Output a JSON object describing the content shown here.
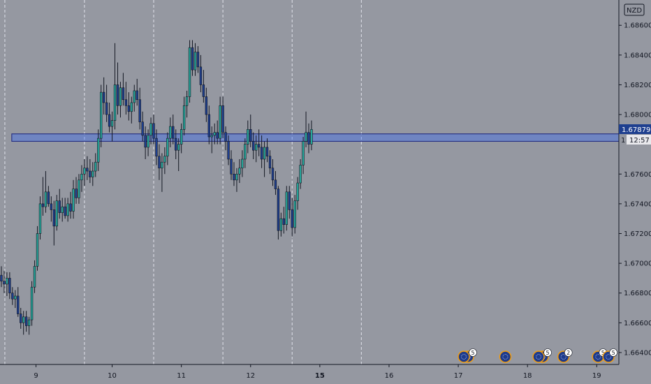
{
  "chart_data": {
    "type": "candlestick",
    "currency": "NZD",
    "y_ticks": [
      "1.68600",
      "1.68400",
      "1.68200",
      "1.68000",
      "1.67600",
      "1.67400",
      "1.67200",
      "1.67000",
      "1.66800",
      "1.66600",
      "1.66400"
    ],
    "y_tick_values": [
      1.686,
      1.684,
      1.682,
      1.68,
      1.676,
      1.674,
      1.672,
      1.67,
      1.668,
      1.666,
      1.664
    ],
    "ylim": [
      1.6632,
      1.6877
    ],
    "x_ticks": [
      {
        "label": "9",
        "x": 8.9,
        "bold": false
      },
      {
        "label": "10",
        "x": 10,
        "bold": false
      },
      {
        "label": "11",
        "x": 11,
        "bold": false
      },
      {
        "label": "12",
        "x": 12,
        "bold": false
      },
      {
        "label": "15",
        "x": 13,
        "bold": true
      },
      {
        "label": "16",
        "x": 14,
        "bold": false
      },
      {
        "label": "17",
        "x": 15,
        "bold": false
      },
      {
        "label": "18",
        "x": 16,
        "bold": false
      },
      {
        "label": "19",
        "x": 17,
        "bold": false
      }
    ],
    "xlim": [
      8.38,
      17.32
    ],
    "session_lines": [
      8.45,
      9.6,
      10.6,
      11.6,
      12.6,
      13.6
    ],
    "last_price": "1.67879",
    "countdown": "12:57",
    "price_partial": "1",
    "zone": {
      "y_low": 1.6782,
      "y_high": 1.6787,
      "x_start": 8.55
    },
    "bull_color": "#26a69a",
    "bear_color": "#1e3f8f",
    "wick_color": "#131722",
    "candles": [
      [
        8.4,
        1.6692,
        1.6698,
        1.6684,
        1.6688
      ],
      [
        8.44,
        1.6688,
        1.6695,
        1.668,
        1.6686
      ],
      [
        8.48,
        1.6686,
        1.6694,
        1.6678,
        1.669
      ],
      [
        8.52,
        1.669,
        1.6694,
        1.6676,
        1.668
      ],
      [
        8.56,
        1.668,
        1.6684,
        1.6672,
        1.6676
      ],
      [
        8.6,
        1.6676,
        1.6682,
        1.667,
        1.6678
      ],
      [
        8.64,
        1.6678,
        1.6684,
        1.6664,
        1.6666
      ],
      [
        8.68,
        1.6666,
        1.667,
        1.6656,
        1.666
      ],
      [
        8.72,
        1.666,
        1.6668,
        1.6652,
        1.6664
      ],
      [
        8.76,
        1.6664,
        1.6668,
        1.6654,
        1.6658
      ],
      [
        8.8,
        1.6658,
        1.6664,
        1.6652,
        1.6662
      ],
      [
        8.84,
        1.6662,
        1.6688,
        1.6658,
        1.6684
      ],
      [
        8.88,
        1.6684,
        1.6702,
        1.668,
        1.6698
      ],
      [
        8.92,
        1.6698,
        1.6725,
        1.6695,
        1.672
      ],
      [
        8.96,
        1.672,
        1.6745,
        1.6716,
        1.674
      ],
      [
        9.0,
        1.674,
        1.6758,
        1.6732,
        1.6738
      ],
      [
        9.04,
        1.6738,
        1.6762,
        1.6734,
        1.6748
      ],
      [
        9.08,
        1.6748,
        1.6752,
        1.6738,
        1.674
      ],
      [
        9.12,
        1.674,
        1.6745,
        1.6728,
        1.6736
      ],
      [
        9.16,
        1.6736,
        1.6742,
        1.6712,
        1.6725
      ],
      [
        9.2,
        1.6725,
        1.6746,
        1.6722,
        1.6742
      ],
      [
        9.24,
        1.6742,
        1.675,
        1.673,
        1.6734
      ],
      [
        9.28,
        1.6734,
        1.6744,
        1.6728,
        1.6738
      ],
      [
        9.32,
        1.6738,
        1.6744,
        1.673,
        1.6732
      ],
      [
        9.36,
        1.6732,
        1.6744,
        1.6728,
        1.674
      ],
      [
        9.4,
        1.674,
        1.6748,
        1.673,
        1.6735
      ],
      [
        9.44,
        1.6735,
        1.6756,
        1.673,
        1.675
      ],
      [
        9.48,
        1.675,
        1.6758,
        1.674,
        1.6744
      ],
      [
        9.52,
        1.6744,
        1.676,
        1.674,
        1.6756
      ],
      [
        9.56,
        1.6756,
        1.6766,
        1.6748,
        1.676
      ],
      [
        9.6,
        1.676,
        1.677,
        1.6752,
        1.6764
      ],
      [
        9.64,
        1.6764,
        1.6772,
        1.6756,
        1.6762
      ],
      [
        9.68,
        1.6762,
        1.677,
        1.6754,
        1.6758
      ],
      [
        9.72,
        1.6758,
        1.6768,
        1.6752,
        1.6762
      ],
      [
        9.76,
        1.6762,
        1.6774,
        1.6758,
        1.6768
      ],
      [
        9.8,
        1.6768,
        1.679,
        1.6762,
        1.6784
      ],
      [
        9.84,
        1.6784,
        1.682,
        1.6778,
        1.6815
      ],
      [
        9.88,
        1.6815,
        1.6825,
        1.68,
        1.6808
      ],
      [
        9.92,
        1.6808,
        1.682,
        1.6795,
        1.68
      ],
      [
        9.96,
        1.68,
        1.6808,
        1.6788,
        1.6792
      ],
      [
        10.0,
        1.6792,
        1.6802,
        1.6782,
        1.6796
      ],
      [
        10.04,
        1.6796,
        1.6848,
        1.679,
        1.682
      ],
      [
        10.08,
        1.682,
        1.6835,
        1.68,
        1.6806
      ],
      [
        10.12,
        1.6806,
        1.6822,
        1.6798,
        1.6818
      ],
      [
        10.16,
        1.6818,
        1.6828,
        1.6806,
        1.681
      ],
      [
        10.2,
        1.681,
        1.6822,
        1.68,
        1.6806
      ],
      [
        10.24,
        1.6806,
        1.6815,
        1.6796,
        1.6802
      ],
      [
        10.28,
        1.6802,
        1.6812,
        1.6794,
        1.6808
      ],
      [
        10.32,
        1.6808,
        1.682,
        1.6802,
        1.6816
      ],
      [
        10.36,
        1.6816,
        1.6824,
        1.6806,
        1.681
      ],
      [
        10.4,
        1.681,
        1.6818,
        1.679,
        1.6795
      ],
      [
        10.44,
        1.6795,
        1.6802,
        1.6782,
        1.6786
      ],
      [
        10.48,
        1.6786,
        1.6792,
        1.677,
        1.6778
      ],
      [
        10.52,
        1.6778,
        1.679,
        1.6772,
        1.6786
      ],
      [
        10.56,
        1.6786,
        1.6798,
        1.678,
        1.6794
      ],
      [
        10.6,
        1.6794,
        1.68,
        1.678,
        1.6784
      ],
      [
        10.64,
        1.6784,
        1.679,
        1.6766,
        1.6772
      ],
      [
        10.68,
        1.6772,
        1.678,
        1.6756,
        1.6764
      ],
      [
        10.72,
        1.6764,
        1.6774,
        1.6748,
        1.6768
      ],
      [
        10.76,
        1.6768,
        1.6778,
        1.676,
        1.6772
      ],
      [
        10.8,
        1.6772,
        1.6788,
        1.6766,
        1.6784
      ],
      [
        10.84,
        1.6784,
        1.6798,
        1.6778,
        1.6792
      ],
      [
        10.88,
        1.6792,
        1.68,
        1.678,
        1.6784
      ],
      [
        10.92,
        1.6784,
        1.679,
        1.677,
        1.6776
      ],
      [
        10.96,
        1.6776,
        1.6784,
        1.6762,
        1.678
      ],
      [
        11.0,
        1.678,
        1.6794,
        1.6774,
        1.679
      ],
      [
        11.04,
        1.679,
        1.6812,
        1.6786,
        1.6806
      ],
      [
        11.08,
        1.6806,
        1.6816,
        1.6798,
        1.6812
      ],
      [
        11.12,
        1.6812,
        1.685,
        1.6808,
        1.6845
      ],
      [
        11.16,
        1.6845,
        1.685,
        1.6826,
        1.683
      ],
      [
        11.2,
        1.683,
        1.6848,
        1.6826,
        1.6842
      ],
      [
        11.24,
        1.6842,
        1.6846,
        1.6828,
        1.6832
      ],
      [
        11.28,
        1.6832,
        1.684,
        1.6815,
        1.682
      ],
      [
        11.32,
        1.682,
        1.683,
        1.6808,
        1.6812
      ],
      [
        11.36,
        1.6812,
        1.6818,
        1.6795,
        1.68
      ],
      [
        11.4,
        1.68,
        1.6806,
        1.678,
        1.6785
      ],
      [
        11.44,
        1.6785,
        1.6792,
        1.6774,
        1.6786
      ],
      [
        11.48,
        1.6786,
        1.6794,
        1.678,
        1.6788
      ],
      [
        11.52,
        1.6788,
        1.6796,
        1.678,
        1.6784
      ],
      [
        11.56,
        1.6784,
        1.6812,
        1.678,
        1.6806
      ],
      [
        11.6,
        1.6806,
        1.6812,
        1.6784,
        1.6788
      ],
      [
        11.64,
        1.6788,
        1.6792,
        1.6776,
        1.6782
      ],
      [
        11.68,
        1.6782,
        1.6786,
        1.6766,
        1.677
      ],
      [
        11.72,
        1.677,
        1.6776,
        1.6756,
        1.676
      ],
      [
        11.76,
        1.676,
        1.6768,
        1.6752,
        1.6756
      ],
      [
        11.8,
        1.6756,
        1.6764,
        1.6748,
        1.676
      ],
      [
        11.84,
        1.676,
        1.677,
        1.6754,
        1.6764
      ],
      [
        11.88,
        1.6764,
        1.6776,
        1.6758,
        1.677
      ],
      [
        11.92,
        1.677,
        1.6784,
        1.6764,
        1.678
      ],
      [
        11.96,
        1.678,
        1.6796,
        1.6774,
        1.679
      ],
      [
        12.0,
        1.679,
        1.68,
        1.6778,
        1.6782
      ],
      [
        12.04,
        1.6782,
        1.6788,
        1.677,
        1.6776
      ],
      [
        12.08,
        1.6776,
        1.6786,
        1.6768,
        1.678
      ],
      [
        12.12,
        1.678,
        1.679,
        1.6772,
        1.6778
      ],
      [
        12.16,
        1.6778,
        1.6786,
        1.6764,
        1.677
      ],
      [
        12.2,
        1.677,
        1.6782,
        1.6758,
        1.6778
      ],
      [
        12.24,
        1.6778,
        1.6784,
        1.6768,
        1.6772
      ],
      [
        12.28,
        1.6772,
        1.6776,
        1.676,
        1.6764
      ],
      [
        12.32,
        1.6764,
        1.677,
        1.6752,
        1.6756
      ],
      [
        12.36,
        1.6756,
        1.6762,
        1.6746,
        1.675
      ],
      [
        12.4,
        1.675,
        1.6752,
        1.6716,
        1.6722
      ],
      [
        12.44,
        1.6722,
        1.6734,
        1.6718,
        1.673
      ],
      [
        12.48,
        1.673,
        1.6738,
        1.672,
        1.6726
      ],
      [
        12.52,
        1.6726,
        1.6752,
        1.6722,
        1.6748
      ],
      [
        12.56,
        1.6748,
        1.6752,
        1.673,
        1.6736
      ],
      [
        12.6,
        1.6736,
        1.6744,
        1.6718,
        1.6724
      ],
      [
        12.64,
        1.6724,
        1.6746,
        1.672,
        1.6742
      ],
      [
        12.68,
        1.6742,
        1.6758,
        1.6736,
        1.6754
      ],
      [
        12.72,
        1.6754,
        1.677,
        1.675,
        1.6766
      ],
      [
        12.76,
        1.6766,
        1.6785,
        1.676,
        1.6782
      ],
      [
        12.8,
        1.6782,
        1.6802,
        1.6778,
        1.6788
      ],
      [
        12.84,
        1.6788,
        1.6794,
        1.6774,
        1.678
      ],
      [
        12.88,
        1.678,
        1.6796,
        1.6776,
        1.679
      ]
    ],
    "event_icons": [
      {
        "x": 15.08,
        "badge": "5",
        "count": 2
      },
      {
        "x": 15.68,
        "badge": "",
        "count": 1
      },
      {
        "x": 16.16,
        "badge": "5",
        "count": 2
      },
      {
        "x": 16.52,
        "badge": "2",
        "count": 1
      },
      {
        "x": 17.02,
        "badge": "5",
        "count": 1
      },
      {
        "x": 17.17,
        "badge": "5",
        "count": 1
      }
    ]
  }
}
